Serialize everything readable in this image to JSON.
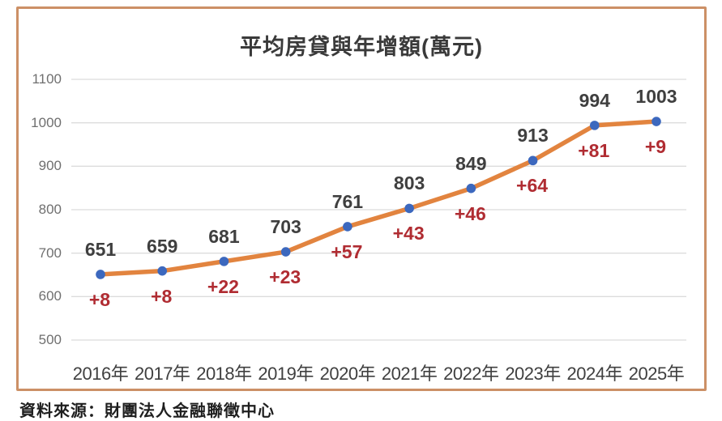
{
  "chart_data": {
    "type": "line",
    "title": "平均房貸與年增額(萬元)",
    "categories": [
      "2016年",
      "2017年",
      "2018年",
      "2019年",
      "2020年",
      "2021年",
      "2022年",
      "2023年",
      "2024年",
      "2025年"
    ],
    "series": [
      {
        "name": "平均房貸",
        "values": [
          651,
          659,
          681,
          703,
          761,
          803,
          849,
          913,
          994,
          1003
        ]
      }
    ],
    "annual_increase_labels": [
      "+8",
      "+8",
      "+22",
      "+23",
      "+57",
      "+43",
      "+46",
      "+64",
      "+81",
      "+9"
    ],
    "ylim": [
      500,
      1100
    ],
    "yticks": [
      500,
      600,
      700,
      800,
      900,
      1000,
      1100
    ],
    "grid": true,
    "legend_position": "none",
    "colors": {
      "line": "#e2843f",
      "marker": "#3c68be",
      "value_label": "#3f3f3f",
      "increase_label": "#b02c32",
      "gridline": "#dcdcdc",
      "y_axis_label": "#6f6f6f",
      "x_axis_label": "#404040",
      "frame_border": "#cc9066",
      "title": "#3a3a3a"
    }
  },
  "source_note": "資料來源：財團法人金融聯徵中心"
}
